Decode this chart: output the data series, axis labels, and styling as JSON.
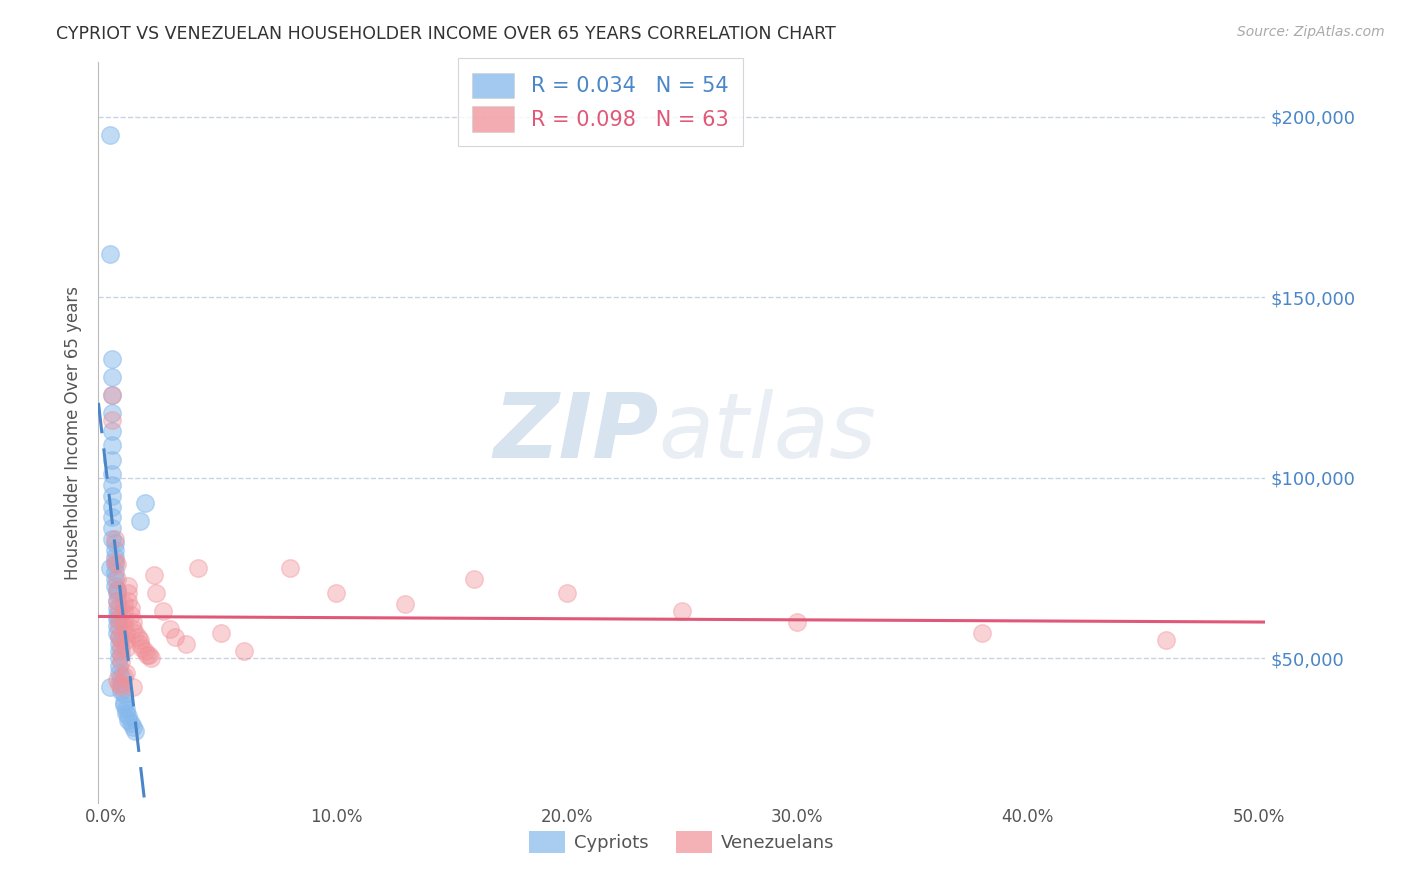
{
  "title": "CYPRIOT VS VENEZUELAN HOUSEHOLDER INCOME OVER 65 YEARS CORRELATION CHART",
  "source": "Source: ZipAtlas.com",
  "ylabel": "Householder Income Over 65 years",
  "xlim": [
    -0.003,
    0.503
  ],
  "ylim": [
    10000,
    215000
  ],
  "yticks": [
    50000,
    100000,
    150000,
    200000
  ],
  "ytick_labels": [
    "$50,000",
    "$100,000",
    "$150,000",
    "$200,000"
  ],
  "xticks": [
    0.0,
    0.1,
    0.2,
    0.3,
    0.4,
    0.5
  ],
  "xtick_labels": [
    "0.0%",
    "10.0%",
    "20.0%",
    "30.0%",
    "40.0%",
    "50.0%"
  ],
  "grid_color": "#c8d4e4",
  "background_color": "#ffffff",
  "cypriot_color": "#85b8ec",
  "venezuelan_color": "#f09098",
  "cypriot_line_color": "#4a86c8",
  "venezuelan_line_color": "#e05878",
  "legend_R_cypriot": "R = 0.034",
  "legend_N_cypriot": "N = 54",
  "legend_R_venezuelan": "R = 0.098",
  "legend_N_venezuelan": "N = 63",
  "watermark_zip": "ZIP",
  "watermark_atlas": "atlas",
  "cypriot_x": [
    0.002,
    0.002,
    0.003,
    0.003,
    0.003,
    0.003,
    0.003,
    0.003,
    0.003,
    0.003,
    0.003,
    0.003,
    0.003,
    0.003,
    0.003,
    0.003,
    0.004,
    0.004,
    0.004,
    0.004,
    0.004,
    0.004,
    0.004,
    0.005,
    0.005,
    0.005,
    0.005,
    0.005,
    0.005,
    0.005,
    0.005,
    0.006,
    0.006,
    0.006,
    0.006,
    0.006,
    0.006,
    0.007,
    0.007,
    0.007,
    0.008,
    0.008,
    0.008,
    0.009,
    0.009,
    0.01,
    0.01,
    0.011,
    0.012,
    0.013,
    0.015,
    0.017,
    0.002,
    0.002
  ],
  "cypriot_y": [
    195000,
    162000,
    133000,
    128000,
    123000,
    118000,
    113000,
    109000,
    105000,
    101000,
    98000,
    95000,
    92000,
    89000,
    86000,
    83000,
    82000,
    80000,
    78000,
    76000,
    74000,
    72000,
    70000,
    69000,
    68000,
    66000,
    64000,
    62000,
    61000,
    59000,
    57000,
    56000,
    54000,
    52000,
    50000,
    48000,
    46000,
    45000,
    43000,
    41000,
    40000,
    38000,
    37000,
    36000,
    35000,
    34000,
    33000,
    32000,
    31000,
    30000,
    88000,
    93000,
    75000,
    42000
  ],
  "venezuelan_x": [
    0.003,
    0.003,
    0.004,
    0.004,
    0.005,
    0.005,
    0.005,
    0.005,
    0.006,
    0.006,
    0.006,
    0.006,
    0.007,
    0.007,
    0.007,
    0.007,
    0.008,
    0.008,
    0.008,
    0.008,
    0.009,
    0.009,
    0.009,
    0.01,
    0.01,
    0.01,
    0.011,
    0.011,
    0.012,
    0.012,
    0.013,
    0.014,
    0.015,
    0.015,
    0.016,
    0.017,
    0.018,
    0.019,
    0.02,
    0.021,
    0.022,
    0.025,
    0.028,
    0.03,
    0.035,
    0.04,
    0.05,
    0.06,
    0.08,
    0.1,
    0.13,
    0.16,
    0.2,
    0.25,
    0.3,
    0.38,
    0.46,
    0.005,
    0.006,
    0.007,
    0.008,
    0.009,
    0.012
  ],
  "venezuelan_y": [
    123000,
    116000,
    83000,
    77000,
    76000,
    72000,
    69000,
    66000,
    64000,
    61000,
    59000,
    56000,
    55000,
    53000,
    51000,
    49000,
    65000,
    63000,
    61000,
    59000,
    57000,
    55000,
    53000,
    70000,
    68000,
    66000,
    64000,
    62000,
    60000,
    58000,
    57000,
    56000,
    55000,
    54000,
    53000,
    52000,
    51000,
    51000,
    50000,
    73000,
    68000,
    63000,
    58000,
    56000,
    54000,
    75000,
    57000,
    52000,
    75000,
    68000,
    65000,
    72000,
    68000,
    63000,
    60000,
    57000,
    55000,
    44000,
    43000,
    42000,
    45000,
    46000,
    42000
  ]
}
